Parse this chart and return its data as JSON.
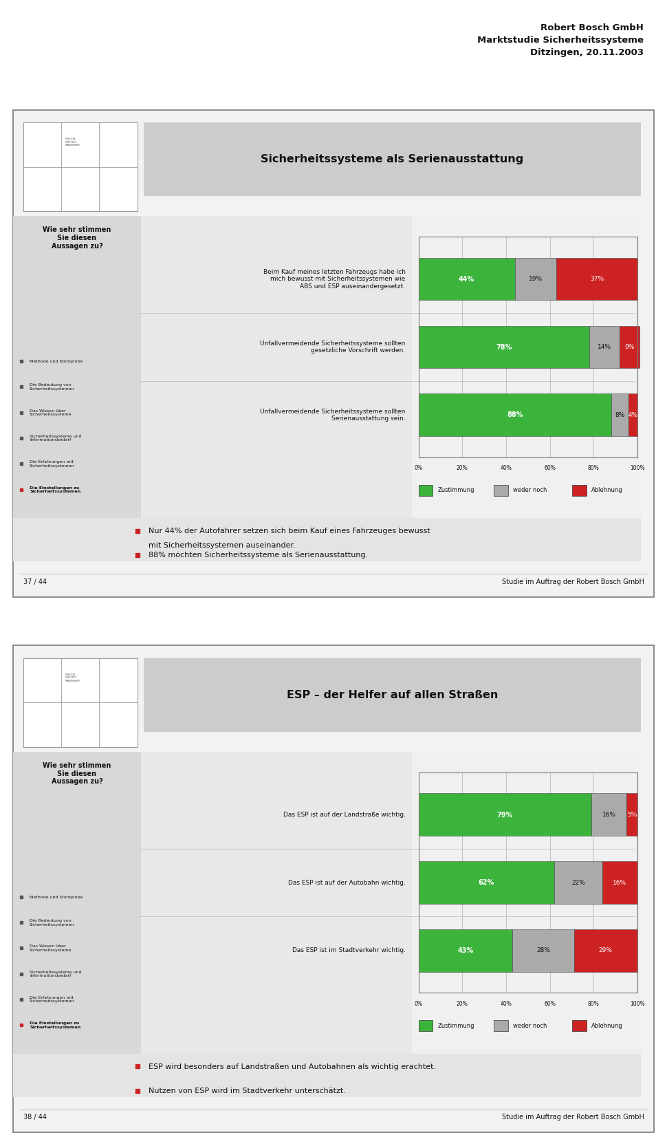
{
  "header_title_line1": "Robert Bosch GmbH",
  "header_title_line2": "Marktstudie Sicherheitssysteme",
  "header_title_line3": "Ditzingen, 20.11.2003",
  "slide1": {
    "title": "Sicherheitssysteme als Serienausstattung",
    "rows": [
      {
        "label1": "Beim Kauf meines letzten Fahrzeugs habe ich",
        "label2": "mich bewusst mit Sicherheitssystemen wie",
        "label3": "ABS und ESP auseinandergesetzt.",
        "bold_part": "bewusst",
        "zustimmung": 44,
        "weder_noch": 19,
        "ablehnung": 37
      },
      {
        "label1": "Unfallvermeidende Sicherheitssysteme sollten",
        "label2": "gesetzliche Vorschrift werden.",
        "label3": "",
        "bold_part": "",
        "zustimmung": 78,
        "weder_noch": 14,
        "ablehnung": 9
      },
      {
        "label1": "Unfallvermeidende Sicherheitssysteme sollten",
        "label2": "Serienausstattung sein.",
        "label3": "",
        "bold_part": "",
        "zustimmung": 88,
        "weder_noch": 8,
        "ablehnung": 4
      }
    ],
    "wie_sehr_label": "Wie sehr stimmen\nSie diesen\nAussagen zu?",
    "nav_items": [
      {
        "text": "Methode und Stichprobe",
        "bold": false
      },
      {
        "text": "Die Bedeutung von\nSicherheitssystemen",
        "bold": false
      },
      {
        "text": "Das Wissen über\nSicherheitssysteme",
        "bold": false
      },
      {
        "text": "Sicherheitssysteme und\nInformationsbedarf",
        "bold": false
      },
      {
        "text": "Die Erfahrungen mit\nSicherheitssystemen",
        "bold": false
      },
      {
        "text": "Die Einstellungen zu\nSicherheitssystemen",
        "bold": true
      }
    ],
    "bullets": [
      "Nur 44% der Autofahrer setzen sich beim Kauf eines Fahrzeuges bewusst",
      "mit Sicherheitssystemen auseinander.",
      "88% möchten Sicherheitssysteme als Serienausstattung."
    ],
    "bullet_groups": [
      {
        "lines": [
          "Nur 44% der Autofahrer setzen sich beim Kauf eines Fahrzeuges bewusst",
          "mit Sicherheitssystemen auseinander."
        ]
      },
      {
        "lines": [
          "88% möchten Sicherheitssysteme als Serienausstattung."
        ]
      }
    ],
    "footer_left": "37 / 44",
    "footer_right": "Studie im Auftrag der Robert Bosch GmbH"
  },
  "slide2": {
    "title": "ESP – der Helfer auf allen Straßen",
    "rows": [
      {
        "label1": "Das ESP ist auf der Landstraße wichtig.",
        "label2": "",
        "label3": "",
        "bold_part": "",
        "zustimmung": 79,
        "weder_noch": 16,
        "ablehnung": 5
      },
      {
        "label1": "Das ESP ist auf der Autobahn wichtig.",
        "label2": "",
        "label3": "",
        "bold_part": "",
        "zustimmung": 62,
        "weder_noch": 22,
        "ablehnung": 16
      },
      {
        "label1": "Das ESP ist im Stadtverkehr wichtig.",
        "label2": "",
        "label3": "",
        "bold_part": "",
        "zustimmung": 43,
        "weder_noch": 28,
        "ablehnung": 29
      }
    ],
    "wie_sehr_label": "Wie sehr stimmen\nSie diesen\nAussagen zu?",
    "nav_items": [
      {
        "text": "Methode und Stichprobe",
        "bold": false
      },
      {
        "text": "Die Bedeutung von\nSicherheitssystemen",
        "bold": false
      },
      {
        "text": "Das Wissen über\nSicherheitssysteme",
        "bold": false
      },
      {
        "text": "Sicherheitssysteme und\nInformationsbedarf",
        "bold": false
      },
      {
        "text": "Die Erfahrungen mit\nSicherheitssystemen",
        "bold": false
      },
      {
        "text": "Die Einstellungen zu\nSicherheitssystemen",
        "bold": true
      }
    ],
    "bullet_groups": [
      {
        "lines": [
          "ESP wird besonders auf Landstraßen und Autobahnen als wichtig erachtet."
        ]
      },
      {
        "lines": [
          "Nutzen von ESP wird im Stadtverkehr unterschätzt."
        ]
      }
    ],
    "footer_left": "38 / 44",
    "footer_right": "Studie im Auftrag der Robert Bosch GmbH"
  },
  "colors": {
    "green": "#3CB43C",
    "gray": "#AAAAAA",
    "red": "#CC2222",
    "page_bg": "#FFFFFF",
    "panel_bg": "#F2F2F2",
    "panel_border": "#888888",
    "left_col_bg": "#D8D8D8",
    "mid_col_bg": "#E8E8E8",
    "title_bar_bg": "#CCCCCC",
    "bullet_area_bg": "#E0E0E0",
    "footer_line": "#AAAAAA",
    "text_dark": "#111111",
    "text_nav": "#222222",
    "white": "#FFFFFF"
  }
}
